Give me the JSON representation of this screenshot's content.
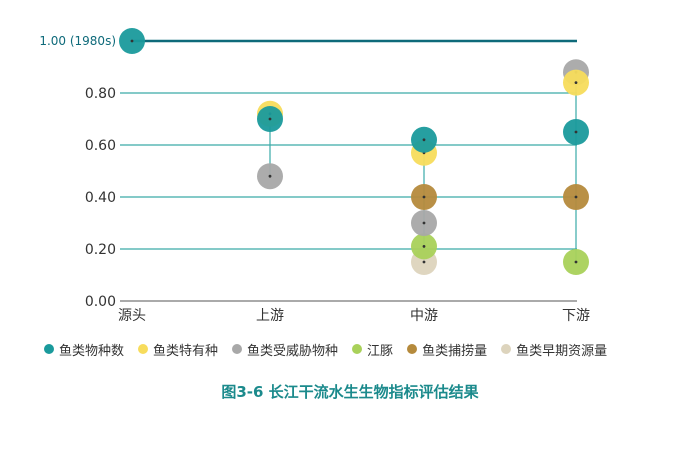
{
  "chart_data": {
    "type": "scatter",
    "caption": "图3-6 长江干流水生生物指标评估结果",
    "categories": [
      "源头",
      "上游",
      "中游",
      "下游"
    ],
    "yticks": [
      "0.00",
      "0.20",
      "0.40",
      "0.60",
      "0.80"
    ],
    "ref_line": {
      "value": 1.0,
      "label": "1.00 (1980s)",
      "color": "#0e6a7a"
    },
    "ylim": [
      0,
      1.0
    ],
    "series": [
      {
        "name": "鱼类物种数",
        "color": "#1a9a9c",
        "values": [
          1.0,
          0.7,
          0.62,
          0.65
        ]
      },
      {
        "name": "鱼类特有种",
        "color": "#f7dc5c",
        "values": [
          null,
          0.72,
          0.57,
          0.84
        ]
      },
      {
        "name": "鱼类受威胁物种",
        "color": "#a8a8a8",
        "values": [
          null,
          0.48,
          0.3,
          0.88
        ]
      },
      {
        "name": "江豚",
        "color": "#a9d15a",
        "values": [
          null,
          null,
          0.21,
          0.15
        ]
      },
      {
        "name": "鱼类捕捞量",
        "color": "#b58a3c",
        "values": [
          null,
          null,
          0.4,
          0.4
        ]
      },
      {
        "name": "鱼类早期资源量",
        "color": "#ddd4bd",
        "values": [
          null,
          null,
          0.15,
          null
        ]
      }
    ],
    "grid": true,
    "legend_position": "bottom"
  }
}
